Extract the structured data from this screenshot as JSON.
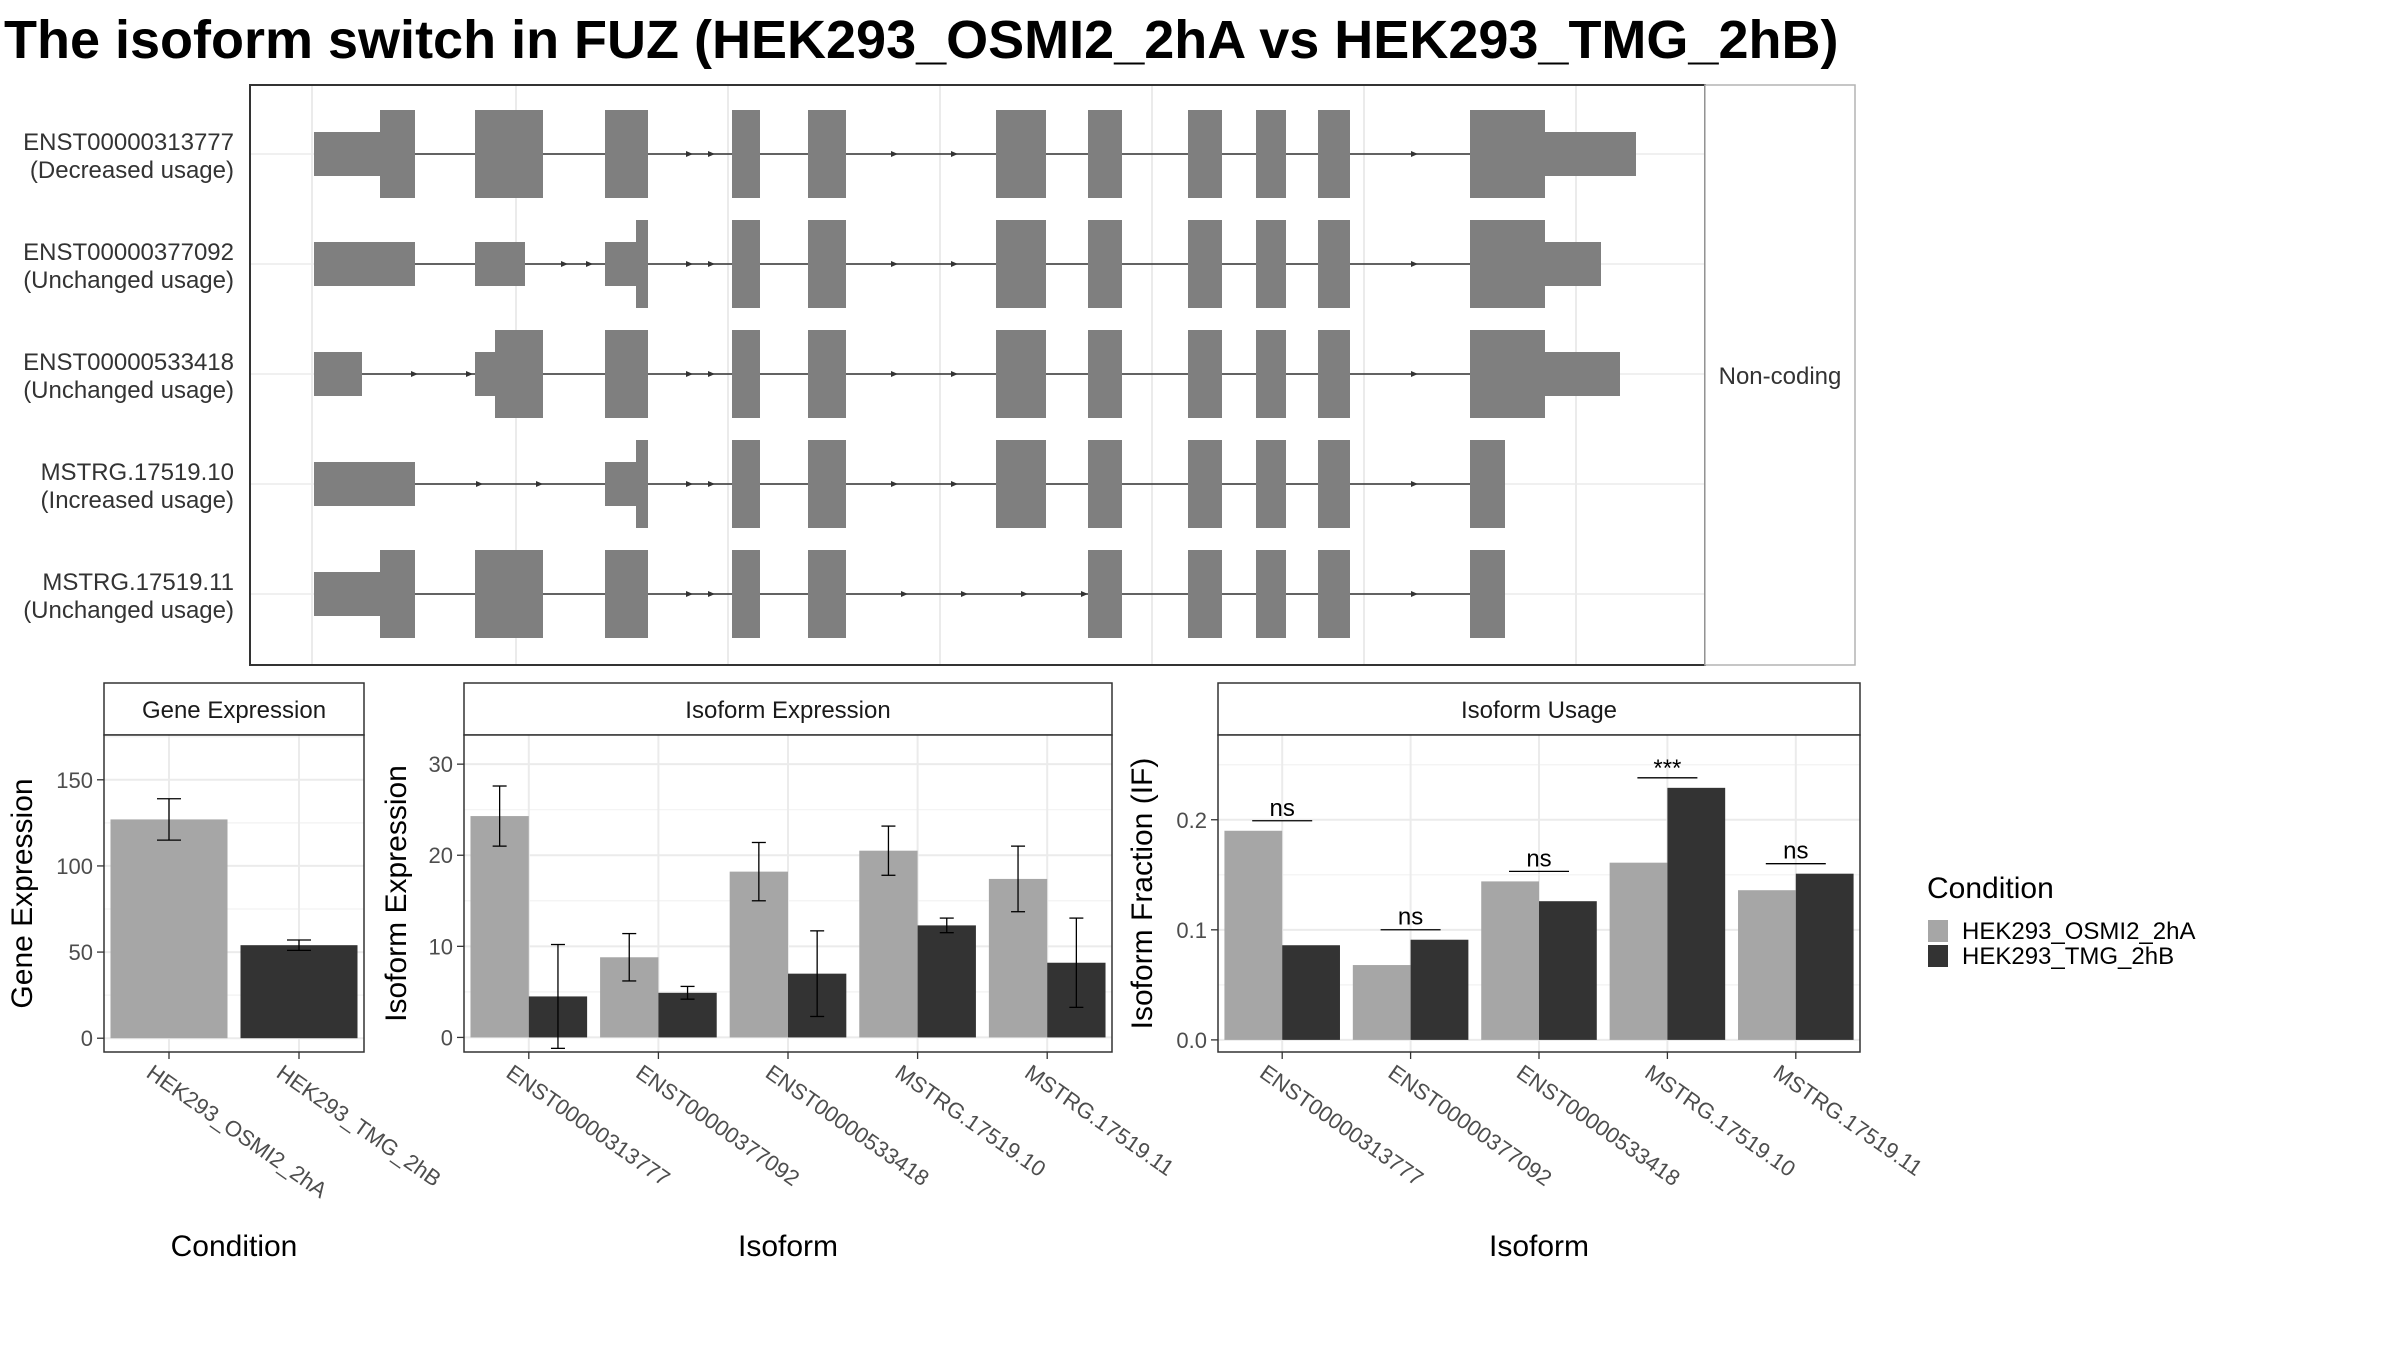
{
  "title": "The isoform switch in FUZ (HEK293_OSMI2_2hA vs HEK293_TMG_2hB)",
  "colors": {
    "exon": "#7f7f7f",
    "condA": "#a6a6a6",
    "condB": "#333333",
    "panel_border": "#333333",
    "grid": "#ebebeb"
  },
  "conditions": [
    "HEK293_OSMI2_2hA",
    "HEK293_TMG_2hB"
  ],
  "legend": {
    "title": "Condition",
    "items": [
      "HEK293_OSMI2_2hA",
      "HEK293_TMG_2hB"
    ]
  },
  "structure": {
    "strip_label": "Non-coding",
    "isoforms": [
      {
        "id": "ENST00000313777",
        "usage": "(Decreased usage)"
      },
      {
        "id": "ENST00000377092",
        "usage": "(Unchanged usage)"
      },
      {
        "id": "ENST00000533418",
        "usage": "(Unchanged usage)"
      },
      {
        "id": "MSTRG.17519.10",
        "usage": "(Increased usage)"
      },
      {
        "id": "MSTRG.17519.11",
        "usage": "(Unchanged usage)"
      }
    ]
  },
  "chart_data": [
    {
      "type": "bar",
      "title": "Gene Expression",
      "xlabel": "Condition",
      "ylabel": "Gene Expression",
      "categories": [
        "HEK293_OSMI2_2hA",
        "HEK293_TMG_2hB"
      ],
      "values": [
        127,
        54
      ],
      "errors": [
        [
          115,
          139
        ],
        [
          51,
          57
        ]
      ],
      "ylim": [
        -8,
        176
      ],
      "yticks": [
        0,
        50,
        100,
        150
      ],
      "grid": true
    },
    {
      "type": "bar",
      "title": "Isoform Expression",
      "xlabel": "Isoform",
      "ylabel": "Isoform Expression",
      "categories": [
        "ENST00000313777",
        "ENST00000377092",
        "ENST00000533418",
        "MSTRG.17519.10",
        "MSTRG.17519.11"
      ],
      "series": [
        {
          "name": "HEK293_OSMI2_2hA",
          "values": [
            24.3,
            8.8,
            18.2,
            20.5,
            17.4
          ],
          "errors": [
            [
              21,
              27.6
            ],
            [
              6.2,
              11.4
            ],
            [
              15,
              21.4
            ],
            [
              17.8,
              23.2
            ],
            [
              13.8,
              21.0
            ]
          ]
        },
        {
          "name": "HEK293_TMG_2hB",
          "values": [
            4.5,
            4.9,
            7.0,
            12.3,
            8.2
          ],
          "errors": [
            [
              -1.2,
              10.2
            ],
            [
              4.2,
              5.6
            ],
            [
              2.3,
              11.7
            ],
            [
              11.5,
              13.1
            ],
            [
              3.3,
              13.1
            ]
          ]
        }
      ],
      "ylim": [
        -1.6,
        33.2
      ],
      "yticks": [
        0,
        10,
        20,
        30
      ],
      "grid": true
    },
    {
      "type": "bar",
      "title": "Isoform Usage",
      "xlabel": "Isoform",
      "ylabel": "Isoform Fraction (IF)",
      "categories": [
        "ENST00000313777",
        "ENST00000377092",
        "ENST00000533418",
        "MSTRG.17519.10",
        "MSTRG.17519.11"
      ],
      "series": [
        {
          "name": "HEK293_OSMI2_2hA",
          "values": [
            0.19,
            0.068,
            0.144,
            0.161,
            0.136
          ]
        },
        {
          "name": "HEK293_TMG_2hB",
          "values": [
            0.086,
            0.091,
            0.126,
            0.229,
            0.151
          ]
        }
      ],
      "significance": [
        "ns",
        "ns",
        "ns",
        "***",
        "ns"
      ],
      "ylim": [
        -0.011,
        0.277
      ],
      "yticks": [
        0.0,
        0.1,
        0.2
      ],
      "grid": true
    }
  ]
}
